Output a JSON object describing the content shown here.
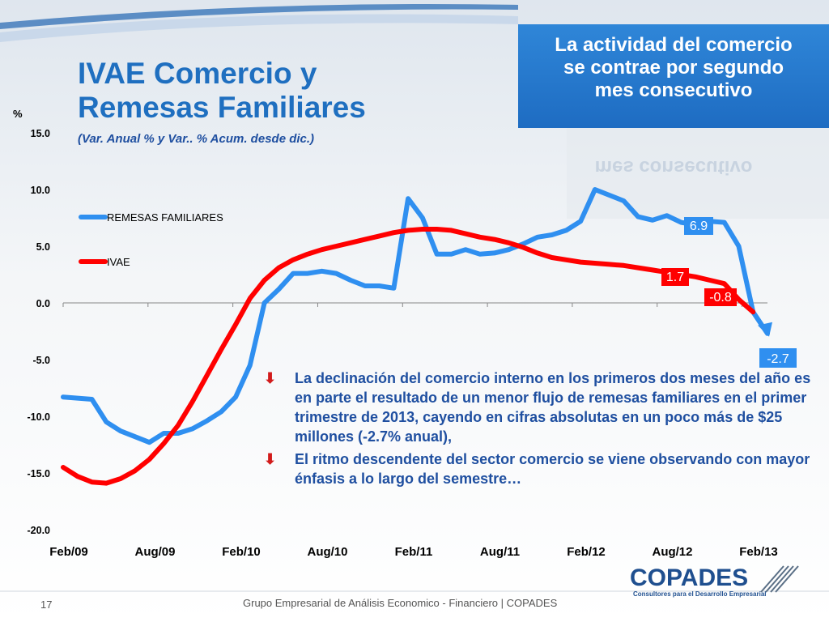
{
  "header": {
    "title_line1": "IVAE Comercio y",
    "title_line2": "Remesas Familiares",
    "subtitle": "(Var. Anual % y Var.. % Acum. desde dic.)"
  },
  "callout": {
    "line1": "La actividad del comercio",
    "line2": "se contrae por segundo",
    "line3": "mes consecutivo"
  },
  "bullets": [
    "La declinación del comercio interno en los primeros dos meses del año es en parte el resultado de un menor flujo de remesas familiares en el primer trimestre de 2013, cayendo en cifras absolutas en un poco más de $25 millones (-2.7% anual),",
    "El ritmo descendente del sector comercio se viene observando con mayor énfasis a lo largo del semestre…"
  ],
  "footer": {
    "page_number": "17",
    "text": "Grupo Empresarial de Análisis Economico - Financiero | COPADES"
  },
  "logo": {
    "name": "COPADES",
    "tagline": "Consultores para el Desarrollo Empresarial"
  },
  "colors": {
    "remesas": "#2f8ff0",
    "ivae": "#ff0000",
    "title": "#1f6fc0",
    "callout_bg": "#2378cc"
  },
  "chart_data": {
    "type": "line",
    "ylabel": "%",
    "ylim": [
      -20,
      15
    ],
    "yticks": [
      "15.0",
      "10.0",
      "5.0",
      "0.0",
      "-5.0",
      "-10.0",
      "-15.0",
      "-20.0"
    ],
    "xticks": [
      "Feb/09",
      "Aug/09",
      "Feb/10",
      "Aug/10",
      "Feb/11",
      "Aug/11",
      "Feb/12",
      "Aug/12",
      "Feb/13"
    ],
    "legend": "top-left",
    "series": [
      {
        "name": "REMESAS FAMILIARES",
        "color": "#2f8ff0",
        "values": [
          -8.3,
          -8.4,
          -8.5,
          -10.5,
          -11.3,
          -11.8,
          -12.3,
          -11.5,
          -11.5,
          -11.1,
          -10.4,
          -9.6,
          -8.3,
          -5.5,
          0.0,
          1.2,
          2.6,
          2.6,
          2.8,
          2.6,
          2.0,
          1.5,
          1.5,
          1.3,
          9.2,
          7.5,
          4.3,
          4.3,
          4.7,
          4.3,
          4.4,
          4.7,
          5.2,
          5.8,
          6.0,
          6.4,
          7.2,
          10.0,
          9.5,
          9.0,
          7.6,
          7.3,
          7.7,
          7.1,
          6.9,
          7.2,
          7.1,
          5.0,
          -0.8,
          -2.7
        ],
        "end_label": "-2.7",
        "annotation": "6.9"
      },
      {
        "name": "IVAE",
        "color": "#ff0000",
        "values": [
          -14.5,
          -15.3,
          -15.8,
          -15.9,
          -15.5,
          -14.8,
          -13.8,
          -12.4,
          -10.8,
          -8.7,
          -6.4,
          -4.1,
          -1.9,
          0.4,
          2.0,
          3.1,
          3.8,
          4.3,
          4.7,
          5.0,
          5.3,
          5.6,
          5.9,
          6.2,
          6.4,
          6.5,
          6.5,
          6.4,
          6.1,
          5.8,
          5.6,
          5.3,
          4.9,
          4.4,
          4.0,
          3.8,
          3.6,
          3.5,
          3.4,
          3.3,
          3.1,
          2.9,
          2.7,
          2.5,
          2.3,
          2.0,
          1.7,
          0.3,
          -0.8
        ],
        "annotation": "1.7",
        "end_label": "-0.8"
      }
    ]
  }
}
